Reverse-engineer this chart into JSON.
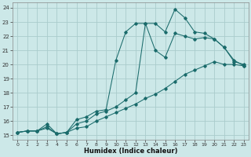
{
  "xlabel": "Humidex (Indice chaleur)",
  "bg_color": "#cce8e8",
  "grid_color": "#aacccc",
  "line_color": "#1a6b6b",
  "xlim_min": -0.5,
  "xlim_max": 23.5,
  "ylim_min": 14.7,
  "ylim_max": 24.4,
  "xticks": [
    0,
    1,
    2,
    3,
    4,
    5,
    6,
    7,
    8,
    9,
    10,
    11,
    12,
    13,
    14,
    15,
    16,
    17,
    18,
    19,
    20,
    21,
    22,
    23
  ],
  "yticks": [
    15,
    16,
    17,
    18,
    19,
    20,
    21,
    22,
    23,
    24
  ],
  "series1_x": [
    0,
    1,
    2,
    3,
    4,
    5,
    6,
    7,
    8,
    9,
    10,
    11,
    12,
    13,
    14,
    15,
    16,
    17,
    18,
    19,
    20,
    21,
    22,
    23
  ],
  "series1_y": [
    15.2,
    15.3,
    15.3,
    15.5,
    15.1,
    15.2,
    15.5,
    15.6,
    16.0,
    16.3,
    16.6,
    16.9,
    17.2,
    17.6,
    17.9,
    18.3,
    18.8,
    19.3,
    19.6,
    19.9,
    20.2,
    20.0,
    20.0,
    19.9
  ],
  "series2_x": [
    0,
    1,
    2,
    3,
    4,
    5,
    6,
    7,
    8,
    9,
    10,
    11,
    12,
    13,
    14,
    15,
    16,
    17,
    18,
    19,
    20,
    21,
    22,
    23
  ],
  "series2_y": [
    15.2,
    15.3,
    15.3,
    15.8,
    15.1,
    15.2,
    16.1,
    16.3,
    16.7,
    16.8,
    20.3,
    22.3,
    22.9,
    22.9,
    21.0,
    20.5,
    22.2,
    22.0,
    21.8,
    21.9,
    21.8,
    21.2,
    20.2,
    20.0
  ],
  "series3_x": [
    0,
    1,
    2,
    3,
    4,
    5,
    6,
    7,
    8,
    9,
    10,
    11,
    12,
    13,
    14,
    15,
    16,
    17,
    18,
    19,
    20,
    21,
    22,
    23
  ],
  "series3_y": [
    15.2,
    15.3,
    15.3,
    15.6,
    15.1,
    15.2,
    15.8,
    16.0,
    16.5,
    16.7,
    17.0,
    17.5,
    18.0,
    22.9,
    22.9,
    22.3,
    23.9,
    23.3,
    22.3,
    22.2,
    21.8,
    21.2,
    20.3,
    19.9
  ]
}
